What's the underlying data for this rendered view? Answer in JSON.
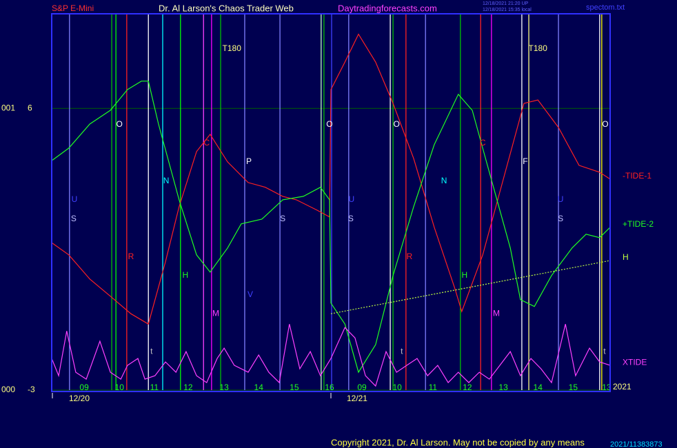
{
  "header": {
    "instrument": "S&P E-Mini",
    "site_title": "Dr. Al Larson's Chaos Trader Web",
    "url": "Daytradingforecasts.com",
    "stamp_1": "12/18/2021 21:20 UP",
    "stamp_2": "12/18/2021 15:35 local",
    "file": "spectom.txt"
  },
  "footer": {
    "copyright": "Copyright 2021, Dr. Al Larson. May not be copied by any means",
    "code": "2021/11383873"
  },
  "chart_data": {
    "type": "line",
    "xlim": [
      0,
      16
    ],
    "ylim": [
      -3,
      9
    ],
    "yticks": [
      {
        "value": 6,
        "label": "6"
      },
      {
        "value": -3,
        "label": "-3"
      }
    ],
    "ytick_prefixes": [
      "001",
      "000"
    ],
    "grid": true,
    "xticks": [
      {
        "value": 0.93,
        "label": "09"
      },
      {
        "value": 1.94,
        "label": "10"
      },
      {
        "value": 2.94,
        "label": "11"
      },
      {
        "value": 3.91,
        "label": "12"
      },
      {
        "value": 4.94,
        "label": "13"
      },
      {
        "value": 5.93,
        "label": "14"
      },
      {
        "value": 6.95,
        "label": "15"
      },
      {
        "value": 7.96,
        "label": "16"
      },
      {
        "value": 8.89,
        "label": "09"
      },
      {
        "value": 9.9,
        "label": "10"
      },
      {
        "value": 10.92,
        "label": "11"
      },
      {
        "value": 11.91,
        "label": "12"
      },
      {
        "value": 12.94,
        "label": "13"
      },
      {
        "value": 13.93,
        "label": "14"
      },
      {
        "value": 14.94,
        "label": "15"
      },
      {
        "value": 15.9,
        "label": "13"
      }
    ],
    "dates": [
      {
        "value": 0.79,
        "label": "12/20"
      },
      {
        "value": 8.75,
        "label": "12/21"
      }
    ],
    "date_ticks": [
      0.02,
      8.0
    ],
    "year": "2021",
    "series": [
      {
        "name": "-TIDE-1",
        "color": "#ff2020",
        "dash": false,
        "x": [
          0,
          0.49,
          1.09,
          1.68,
          2.27,
          2.77,
          3.26,
          3.65,
          4.15,
          4.54,
          5.04,
          5.63,
          6.12,
          6.62,
          7.01,
          7.6,
          7.96,
          8.0,
          8.4,
          8.79,
          9.28,
          9.78,
          10.37,
          10.96,
          11.56,
          11.75,
          12.35,
          12.94,
          13.53,
          13.93,
          14.52,
          15.11,
          15.7,
          16
        ],
        "values": [
          1.71,
          1.32,
          0.55,
          0.0,
          -0.56,
          -0.89,
          1.1,
          2.86,
          4.62,
          5.17,
          4.29,
          3.63,
          3.48,
          3.19,
          3.08,
          2.75,
          2.53,
          6.6,
          7.48,
          8.37,
          7.48,
          6.16,
          4.4,
          2.2,
          0.22,
          -0.49,
          1.32,
          3.74,
          6.16,
          6.27,
          5.39,
          4.18,
          3.96,
          3.74
        ]
      },
      {
        "name": "+TIDE-2",
        "color": "#20ff20",
        "dash": false,
        "x": [
          0,
          0.49,
          1.09,
          1.68,
          2.17,
          2.57,
          2.77,
          3.06,
          3.65,
          4.15,
          4.54,
          5.04,
          5.43,
          6.02,
          6.62,
          7.21,
          7.7,
          7.96,
          8.0,
          8.4,
          8.79,
          9.28,
          9.78,
          10.37,
          10.96,
          11.65,
          12.05,
          12.54,
          13.14,
          13.43,
          13.83,
          14.32,
          14.91,
          15.31,
          15.7,
          16
        ],
        "values": [
          4.33,
          4.73,
          5.5,
          5.94,
          6.6,
          6.87,
          6.87,
          5.5,
          3.08,
          1.32,
          0.77,
          1.54,
          2.31,
          2.46,
          3.08,
          3.19,
          3.48,
          3.08,
          -0.22,
          -0.89,
          -2.43,
          -1.55,
          0.66,
          2.86,
          4.84,
          6.45,
          5.94,
          3.96,
          1.54,
          -0.11,
          -0.33,
          0.66,
          1.54,
          1.98,
          1.87,
          2.2
        ]
      },
      {
        "name": "H",
        "color": "#c0ff40",
        "dash": true,
        "x": [
          8.0,
          16
        ],
        "values": [
          -0.56,
          1.14
        ]
      },
      {
        "name": "XTIDE",
        "color": "#ff40ff",
        "dash": false,
        "x": [
          0,
          0.2,
          0.43,
          0.69,
          0.99,
          1.38,
          1.68,
          1.98,
          2.17,
          2.47,
          2.67,
          2.96,
          3.26,
          3.56,
          3.85,
          4.15,
          4.44,
          4.74,
          4.94,
          5.23,
          5.63,
          5.93,
          6.22,
          6.52,
          6.81,
          7.11,
          7.41,
          7.7,
          8.0,
          8.4,
          8.69,
          8.99,
          9.28,
          9.58,
          9.88,
          10.17,
          10.47,
          10.77,
          11.06,
          11.36,
          11.65,
          11.95,
          12.25,
          12.54,
          12.84,
          13.14,
          13.43,
          13.73,
          14.02,
          14.32,
          14.72,
          15.01,
          15.41,
          15.7,
          16
        ],
        "values": [
          -1.99,
          -2.54,
          -1.11,
          -2.43,
          -2.65,
          -1.44,
          -2.43,
          -2.65,
          -2.21,
          -1.99,
          -2.65,
          -2.54,
          -2.1,
          -2.43,
          -1.77,
          -2.54,
          -2.76,
          -1.99,
          -1.66,
          -2.21,
          -2.43,
          -1.88,
          -2.43,
          -2.76,
          -0.89,
          -2.32,
          -1.77,
          -2.54,
          -1.99,
          -1.0,
          -1.33,
          -2.54,
          -2.87,
          -1.77,
          -2.43,
          -2.21,
          -1.99,
          -2.54,
          -2.21,
          -2.76,
          -2.43,
          -2.76,
          -2.43,
          -2.65,
          -2.21,
          -1.77,
          -2.54,
          -1.99,
          -2.32,
          -2.76,
          -0.89,
          -2.54,
          -1.66,
          -2.1,
          -2.21
        ]
      }
    ],
    "vlines": [
      {
        "x": 0.51,
        "color": "#8080ff"
      },
      {
        "x": 1.72,
        "color": "#00c000"
      },
      {
        "x": 1.84,
        "color": "#00ff00"
      },
      {
        "x": 2.15,
        "color": "#ff2020"
      },
      {
        "x": 2.77,
        "color": "#ffffff"
      },
      {
        "x": 3.18,
        "color": "#00ffff"
      },
      {
        "x": 3.69,
        "color": "#00ff00"
      },
      {
        "x": 4.35,
        "color": "#ff40ff"
      },
      {
        "x": 4.58,
        "color": "#ff00ff"
      },
      {
        "x": 4.84,
        "color": "#00c000"
      },
      {
        "x": 5.53,
        "color": "#8080ff"
      },
      {
        "x": 6.54,
        "color": "#8080ff"
      },
      {
        "x": 7.72,
        "color": "#c0ffc0"
      },
      {
        "x": 7.8,
        "color": "#00c000"
      },
      {
        "x": 8.02,
        "color": "#4040ff"
      },
      {
        "x": 8.51,
        "color": "#8080ff"
      },
      {
        "x": 9.7,
        "color": "#ffffff"
      },
      {
        "x": 9.78,
        "color": "#00c000"
      },
      {
        "x": 10.15,
        "color": "#ff2020"
      },
      {
        "x": 10.71,
        "color": "#8080ff"
      },
      {
        "x": 11.71,
        "color": "#00c000"
      },
      {
        "x": 12.29,
        "color": "#ff2020"
      },
      {
        "x": 12.6,
        "color": "#ff00ff"
      },
      {
        "x": 13.47,
        "color": "#ffffff"
      },
      {
        "x": 13.67,
        "color": "#ffff80"
      },
      {
        "x": 14.52,
        "color": "#8080ff"
      },
      {
        "x": 15.7,
        "color": "#ffffff"
      },
      {
        "x": 15.76,
        "color": "#ffff00"
      }
    ],
    "annotations": [
      {
        "text": "T180",
        "x": 5.16,
        "y": 7.9,
        "color": "#ffff80"
      },
      {
        "text": "T180",
        "x": 13.93,
        "y": 7.9,
        "color": "#ffff80"
      },
      {
        "text": "O",
        "x": 1.94,
        "y": 5.48,
        "color": "#ffffff"
      },
      {
        "text": "O",
        "x": 7.96,
        "y": 5.48,
        "color": "#ffffff"
      },
      {
        "text": "O",
        "x": 9.88,
        "y": 5.48,
        "color": "#ffffff"
      },
      {
        "text": "O",
        "x": 15.86,
        "y": 5.48,
        "color": "#ffffff"
      },
      {
        "text": "N",
        "x": 3.28,
        "y": 3.67,
        "color": "#00ffff"
      },
      {
        "text": "N",
        "x": 11.24,
        "y": 3.67,
        "color": "#00ffff"
      },
      {
        "text": "P",
        "x": 5.65,
        "y": 4.29,
        "color": "#ffffff"
      },
      {
        "text": "F",
        "x": 13.57,
        "y": 4.29,
        "color": "#ffffff"
      },
      {
        "text": "C",
        "x": 4.44,
        "y": 4.89,
        "color": "#ff2020"
      },
      {
        "text": "C",
        "x": 12.35,
        "y": 4.89,
        "color": "#ff2020"
      },
      {
        "text": "U",
        "x": 0.65,
        "y": 3.08,
        "color": "#4040ff"
      },
      {
        "text": "U",
        "x": 8.59,
        "y": 3.08,
        "color": "#4040ff"
      },
      {
        "text": "U",
        "x": 14.58,
        "y": 3.08,
        "color": "#4040ff"
      },
      {
        "text": "S",
        "x": 0.63,
        "y": 2.46,
        "color": "#c0c0ff"
      },
      {
        "text": "S",
        "x": 6.62,
        "y": 2.46,
        "color": "#c0c0ff"
      },
      {
        "text": "S",
        "x": 8.57,
        "y": 2.46,
        "color": "#c0c0ff"
      },
      {
        "text": "S",
        "x": 14.58,
        "y": 2.46,
        "color": "#c0c0ff"
      },
      {
        "text": "R",
        "x": 2.27,
        "y": 1.25,
        "color": "#ff2020"
      },
      {
        "text": "R",
        "x": 10.25,
        "y": 1.25,
        "color": "#ff2020"
      },
      {
        "text": "H",
        "x": 3.83,
        "y": 0.66,
        "color": "#20ff20"
      },
      {
        "text": "H",
        "x": 11.83,
        "y": 0.66,
        "color": "#20ff20"
      },
      {
        "text": "M",
        "x": 4.7,
        "y": -0.56,
        "color": "#ff40ff"
      },
      {
        "text": "M",
        "x": 12.74,
        "y": -0.56,
        "color": "#ff40ff"
      },
      {
        "text": "V",
        "x": 5.69,
        "y": 0.04,
        "color": "#4040ff"
      },
      {
        "text": "t",
        "x": 2.86,
        "y": -1.77,
        "color": "#c0c0c0"
      },
      {
        "text": "t",
        "x": 10.03,
        "y": -1.77,
        "color": "#c0c0c0"
      },
      {
        "text": "t",
        "x": 15.84,
        "y": -1.77,
        "color": "#c0c0c0"
      }
    ]
  }
}
